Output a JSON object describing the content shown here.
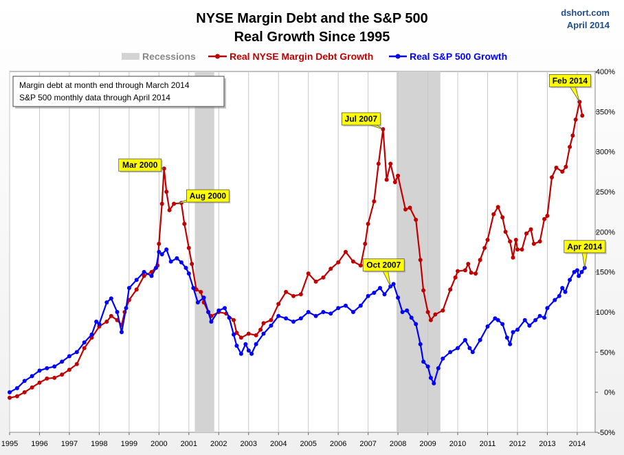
{
  "header": {
    "title_line1": "NYSE Margin Debt and the S&P 500",
    "title_line2": "Real Growth Since 1995",
    "source": "dshort.com",
    "date": "April 2014"
  },
  "note": {
    "line1": "Margin debt at month end through March 2014",
    "line2": "S&P 500 monthly data through April 2014"
  },
  "colors": {
    "margin": "#c00000",
    "sp500": "#0000ff",
    "recession": "#d3d3d3",
    "callout": "#ffff00"
  },
  "chart_data": {
    "type": "line",
    "x_unit": "year",
    "xlim": [
      1995,
      2014.6
    ],
    "ylim": [
      -50,
      400
    ],
    "y_ticks": [
      -50,
      0,
      50,
      100,
      150,
      200,
      250,
      300,
      350,
      400
    ],
    "y_tick_labels": [
      "-50%",
      "0%",
      "50%",
      "100%",
      "150%",
      "200%",
      "250%",
      "300%",
      "350%",
      "400%"
    ],
    "x_ticks": [
      1995,
      1996,
      1997,
      1998,
      1999,
      2000,
      2001,
      2002,
      2003,
      2004,
      2005,
      2006,
      2007,
      2008,
      2009,
      2010,
      2011,
      2012,
      2013,
      2014
    ],
    "x_tick_labels": [
      "1995",
      "1996",
      "1997",
      "1998",
      "1999",
      "2000",
      "2001",
      "2002",
      "2003",
      "2004",
      "2005",
      "2006",
      "2007",
      "2008",
      "2009",
      "2010",
      "2011",
      "2012",
      "2013",
      "2014"
    ],
    "grid": "vertical",
    "legend_position": "top",
    "recessions": [
      {
        "start": 2001.2,
        "end": 2001.85
      },
      {
        "start": 2007.95,
        "end": 2009.42
      }
    ],
    "legend": [
      {
        "label": "Recessions",
        "kind": "band"
      },
      {
        "label": "Real NYSE Margin Debt Growth",
        "kind": "line",
        "series": "margin"
      },
      {
        "label": "Real S&P 500 Growth",
        "kind": "line",
        "series": "sp500"
      }
    ],
    "series": [
      {
        "id": "margin",
        "name": "Real NYSE Margin Debt Growth",
        "points": [
          [
            1995.0,
            -7
          ],
          [
            1995.25,
            -5
          ],
          [
            1995.5,
            0
          ],
          [
            1995.75,
            6
          ],
          [
            1996.0,
            12
          ],
          [
            1996.25,
            17
          ],
          [
            1996.5,
            18
          ],
          [
            1996.75,
            22
          ],
          [
            1997.0,
            28
          ],
          [
            1997.25,
            35
          ],
          [
            1997.5,
            55
          ],
          [
            1997.75,
            68
          ],
          [
            1998.0,
            82
          ],
          [
            1998.25,
            88
          ],
          [
            1998.4,
            95
          ],
          [
            1998.6,
            90
          ],
          [
            1998.75,
            84
          ],
          [
            1998.85,
            100
          ],
          [
            1999.0,
            115
          ],
          [
            1999.25,
            128
          ],
          [
            1999.5,
            145
          ],
          [
            1999.75,
            150
          ],
          [
            1999.95,
            158
          ],
          [
            2000.0,
            185
          ],
          [
            2000.1,
            235
          ],
          [
            2000.17,
            279
          ],
          [
            2000.25,
            250
          ],
          [
            2000.35,
            227
          ],
          [
            2000.5,
            235
          ],
          [
            2000.75,
            236
          ],
          [
            2000.85,
            210
          ],
          [
            2001.0,
            180
          ],
          [
            2001.1,
            160
          ],
          [
            2001.25,
            128
          ],
          [
            2001.4,
            125
          ],
          [
            2001.5,
            112
          ],
          [
            2001.65,
            100
          ],
          [
            2001.75,
            95
          ],
          [
            2002.0,
            100
          ],
          [
            2002.25,
            98
          ],
          [
            2002.5,
            90
          ],
          [
            2002.6,
            74
          ],
          [
            2002.75,
            68
          ],
          [
            2003.0,
            73
          ],
          [
            2003.25,
            71
          ],
          [
            2003.4,
            78
          ],
          [
            2003.5,
            86
          ],
          [
            2003.75,
            90
          ],
          [
            2004.0,
            110
          ],
          [
            2004.25,
            125
          ],
          [
            2004.5,
            120
          ],
          [
            2004.75,
            122
          ],
          [
            2005.0,
            148
          ],
          [
            2005.25,
            138
          ],
          [
            2005.5,
            143
          ],
          [
            2005.75,
            154
          ],
          [
            2006.0,
            162
          ],
          [
            2006.25,
            175
          ],
          [
            2006.5,
            163
          ],
          [
            2006.75,
            158
          ],
          [
            2006.9,
            185
          ],
          [
            2007.0,
            210
          ],
          [
            2007.2,
            238
          ],
          [
            2007.35,
            285
          ],
          [
            2007.5,
            328
          ],
          [
            2007.62,
            265
          ],
          [
            2007.75,
            285
          ],
          [
            2007.9,
            262
          ],
          [
            2008.0,
            270
          ],
          [
            2008.25,
            228
          ],
          [
            2008.4,
            230
          ],
          [
            2008.6,
            215
          ],
          [
            2008.75,
            165
          ],
          [
            2008.85,
            127
          ],
          [
            2009.0,
            100
          ],
          [
            2009.1,
            90
          ],
          [
            2009.25,
            97
          ],
          [
            2009.5,
            102
          ],
          [
            2009.75,
            128
          ],
          [
            2009.92,
            143
          ],
          [
            2010.0,
            151
          ],
          [
            2010.25,
            152
          ],
          [
            2010.35,
            160
          ],
          [
            2010.45,
            149
          ],
          [
            2010.6,
            148
          ],
          [
            2010.75,
            165
          ],
          [
            2010.9,
            180
          ],
          [
            2011.0,
            190
          ],
          [
            2011.2,
            222
          ],
          [
            2011.35,
            231
          ],
          [
            2011.5,
            218
          ],
          [
            2011.6,
            200
          ],
          [
            2011.75,
            188
          ],
          [
            2011.85,
            168
          ],
          [
            2011.95,
            190
          ],
          [
            2012.0,
            178
          ],
          [
            2012.15,
            178
          ],
          [
            2012.3,
            198
          ],
          [
            2012.45,
            203
          ],
          [
            2012.55,
            185
          ],
          [
            2012.75,
            188
          ],
          [
            2012.9,
            216
          ],
          [
            2013.0,
            220
          ],
          [
            2013.15,
            268
          ],
          [
            2013.3,
            280
          ],
          [
            2013.5,
            275
          ],
          [
            2013.62,
            281
          ],
          [
            2013.75,
            306
          ],
          [
            2013.85,
            320
          ],
          [
            2013.95,
            340
          ],
          [
            2014.08,
            362
          ],
          [
            2014.17,
            345
          ]
        ]
      },
      {
        "id": "sp500",
        "name": "Real S&P 500 Growth",
        "points": [
          [
            1995.0,
            0
          ],
          [
            1995.25,
            5
          ],
          [
            1995.5,
            14
          ],
          [
            1995.75,
            20
          ],
          [
            1996.0,
            27
          ],
          [
            1996.25,
            30
          ],
          [
            1996.5,
            32
          ],
          [
            1996.75,
            38
          ],
          [
            1997.0,
            45
          ],
          [
            1997.25,
            50
          ],
          [
            1997.5,
            62
          ],
          [
            1997.75,
            72
          ],
          [
            1997.9,
            88
          ],
          [
            1998.0,
            85
          ],
          [
            1998.25,
            112
          ],
          [
            1998.4,
            117
          ],
          [
            1998.6,
            100
          ],
          [
            1998.75,
            75
          ],
          [
            1998.9,
            105
          ],
          [
            1999.0,
            130
          ],
          [
            1999.25,
            140
          ],
          [
            1999.5,
            150
          ],
          [
            1999.75,
            145
          ],
          [
            1999.9,
            155
          ],
          [
            2000.0,
            175
          ],
          [
            2000.1,
            172
          ],
          [
            2000.25,
            178
          ],
          [
            2000.4,
            163
          ],
          [
            2000.6,
            167
          ],
          [
            2000.75,
            162
          ],
          [
            2000.9,
            155
          ],
          [
            2001.0,
            148
          ],
          [
            2001.15,
            130
          ],
          [
            2001.3,
            112
          ],
          [
            2001.5,
            118
          ],
          [
            2001.65,
            100
          ],
          [
            2001.75,
            88
          ],
          [
            2002.0,
            102
          ],
          [
            2002.2,
            105
          ],
          [
            2002.35,
            93
          ],
          [
            2002.5,
            72
          ],
          [
            2002.6,
            58
          ],
          [
            2002.75,
            48
          ],
          [
            2002.9,
            60
          ],
          [
            2003.0,
            52
          ],
          [
            2003.1,
            48
          ],
          [
            2003.25,
            60
          ],
          [
            2003.5,
            73
          ],
          [
            2003.75,
            83
          ],
          [
            2004.0,
            95
          ],
          [
            2004.25,
            92
          ],
          [
            2004.5,
            88
          ],
          [
            2004.75,
            92
          ],
          [
            2005.0,
            100
          ],
          [
            2005.25,
            95
          ],
          [
            2005.5,
            100
          ],
          [
            2005.75,
            98
          ],
          [
            2006.0,
            105
          ],
          [
            2006.25,
            108
          ],
          [
            2006.5,
            100
          ],
          [
            2006.75,
            108
          ],
          [
            2007.0,
            120
          ],
          [
            2007.2,
            124
          ],
          [
            2007.4,
            130
          ],
          [
            2007.55,
            122
          ],
          [
            2007.75,
            132
          ],
          [
            2007.85,
            135
          ],
          [
            2008.0,
            118
          ],
          [
            2008.15,
            100
          ],
          [
            2008.3,
            102
          ],
          [
            2008.45,
            93
          ],
          [
            2008.6,
            85
          ],
          [
            2008.75,
            60
          ],
          [
            2008.85,
            38
          ],
          [
            2009.0,
            32
          ],
          [
            2009.1,
            18
          ],
          [
            2009.2,
            11
          ],
          [
            2009.35,
            30
          ],
          [
            2009.5,
            42
          ],
          [
            2009.75,
            50
          ],
          [
            2010.0,
            55
          ],
          [
            2010.25,
            65
          ],
          [
            2010.4,
            55
          ],
          [
            2010.5,
            50
          ],
          [
            2010.75,
            65
          ],
          [
            2011.0,
            82
          ],
          [
            2011.25,
            92
          ],
          [
            2011.35,
            90
          ],
          [
            2011.5,
            85
          ],
          [
            2011.65,
            68
          ],
          [
            2011.75,
            60
          ],
          [
            2011.85,
            75
          ],
          [
            2012.0,
            78
          ],
          [
            2012.25,
            90
          ],
          [
            2012.4,
            83
          ],
          [
            2012.6,
            90
          ],
          [
            2012.75,
            95
          ],
          [
            2012.9,
            93
          ],
          [
            2013.0,
            105
          ],
          [
            2013.25,
            115
          ],
          [
            2013.4,
            120
          ],
          [
            2013.5,
            130
          ],
          [
            2013.6,
            125
          ],
          [
            2013.75,
            140
          ],
          [
            2013.9,
            150
          ],
          [
            2014.0,
            152
          ],
          [
            2014.05,
            145
          ],
          [
            2014.15,
            150
          ],
          [
            2014.25,
            155
          ]
        ]
      }
    ],
    "annotations": [
      {
        "label": "Mar 2000",
        "x": 2000.17,
        "series": "margin"
      },
      {
        "label": "Aug 2000",
        "x": 2000.6,
        "series": "margin"
      },
      {
        "label": "Jul 2007",
        "x": 2007.5,
        "series": "margin"
      },
      {
        "label": "Oct 2007",
        "x": 2007.75,
        "series": "sp500"
      },
      {
        "label": "Feb 2014",
        "x": 2014.08,
        "series": "margin"
      },
      {
        "label": "Apr 2014",
        "x": 2014.25,
        "series": "sp500"
      }
    ]
  }
}
